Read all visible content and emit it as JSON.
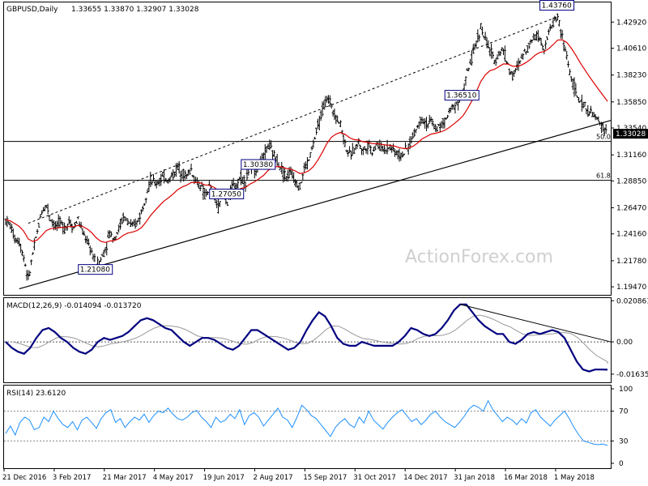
{
  "header": {
    "symbol": "GBPUSD,Daily",
    "ohlc": "1.33655 1.33870 1.32907 1.33028"
  },
  "watermark": "ActionForex.com",
  "chart_data": [
    {
      "type": "candlestick",
      "title": "GBPUSD,Daily",
      "y_ticks": [
        "1.42920",
        "1.40610",
        "1.38230",
        "1.35850",
        "1.33540",
        "1.31160",
        "1.28850",
        "1.26470",
        "1.24160",
        "1.21780",
        "1.19470"
      ],
      "ylim": [
        1.1876,
        1.4466
      ],
      "last_price": "1.33028",
      "last_value": 1.33028,
      "x_ticks": [
        "21 Dec 2016",
        "3 Feb 2017",
        "21 Mar 2017",
        "4 May 2017",
        "19 Jun 2017",
        "2 Aug 2017",
        "15 Sep 2017",
        "31 Oct 2017",
        "14 Dec 2017",
        "31 Jan 2018",
        "16 Mar 2018",
        "1 May 2018"
      ],
      "price_labels": [
        {
          "text": "1.27050",
          "value": 1.2705
        },
        {
          "text": "1.21080",
          "value": 1.2108
        },
        {
          "text": "1.36510",
          "value": 1.3651
        },
        {
          "text": "1.30380",
          "value": 1.3038
        },
        {
          "text": "1.43760",
          "value": 1.4376
        }
      ],
      "fib_levels": [
        {
          "label": "50.0",
          "value": 1.3235
        },
        {
          "label": "61.8",
          "value": 1.289
        }
      ],
      "ema_color": "#dd0000",
      "price_path": [
        1.254,
        1.249,
        1.238,
        1.235,
        1.221,
        1.201,
        1.224,
        1.243,
        1.262,
        1.267,
        1.255,
        1.248,
        1.252,
        1.246,
        1.253,
        1.247,
        1.255,
        1.243,
        1.235,
        1.226,
        1.214,
        1.219,
        1.228,
        1.242,
        1.238,
        1.246,
        1.256,
        1.253,
        1.247,
        1.252,
        1.261,
        1.277,
        1.289,
        1.286,
        1.289,
        1.292,
        1.289,
        1.294,
        1.301,
        1.296,
        1.293,
        1.299,
        1.288,
        1.285,
        1.275,
        1.283,
        1.274,
        1.265,
        1.277,
        1.269,
        1.283,
        1.286,
        1.292,
        1.288,
        1.301,
        1.298,
        1.305,
        1.309,
        1.321,
        1.313,
        1.307,
        1.299,
        1.292,
        1.296,
        1.289,
        1.283,
        1.299,
        1.307,
        1.321,
        1.337,
        1.351,
        1.362,
        1.356,
        1.345,
        1.339,
        1.321,
        1.311,
        1.316,
        1.323,
        1.315,
        1.321,
        1.315,
        1.321,
        1.318,
        1.317,
        1.319,
        1.315,
        1.311,
        1.313,
        1.319,
        1.328,
        1.337,
        1.345,
        1.339,
        1.341,
        1.335,
        1.337,
        1.341,
        1.349,
        1.355,
        1.359,
        1.366,
        1.384,
        1.397,
        1.411,
        1.425,
        1.413,
        1.405,
        1.394,
        1.402,
        1.405,
        1.391,
        1.381,
        1.388,
        1.398,
        1.405,
        1.411,
        1.419,
        1.415,
        1.407,
        1.419,
        1.429,
        1.434,
        1.415,
        1.399,
        1.379,
        1.367,
        1.357,
        1.355,
        1.349,
        1.346,
        1.341,
        1.336,
        1.331
      ]
    },
    {
      "type": "line",
      "title": "MACD(12,26,9) -0.014094 -0.013720",
      "y_ticks": [
        "0.020861",
        "0.00",
        "-0.016357"
      ],
      "ylim": [
        -0.0205,
        0.0222
      ],
      "main_color": "#000080",
      "signal_color": "#999999",
      "macd_path": [
        0.0,
        -0.003,
        -0.005,
        -0.006,
        -0.003,
        0.002,
        0.006,
        0.007,
        0.005,
        0.002,
        0.0,
        -0.003,
        -0.005,
        -0.006,
        -0.004,
        0.0,
        0.002,
        0.001,
        0.002,
        0.003,
        0.005,
        0.008,
        0.011,
        0.012,
        0.011,
        0.009,
        0.007,
        0.006,
        0.003,
        0.0,
        -0.002,
        0.0,
        0.002,
        0.002,
        0.001,
        -0.001,
        -0.003,
        -0.004,
        -0.002,
        0.002,
        0.006,
        0.006,
        0.004,
        0.002,
        0.0,
        -0.002,
        -0.004,
        -0.003,
        0.0,
        0.006,
        0.011,
        0.015,
        0.013,
        0.008,
        0.002,
        -0.001,
        -0.002,
        -0.002,
        0.0,
        -0.001,
        -0.002,
        -0.002,
        -0.002,
        -0.002,
        0.0,
        0.003,
        0.007,
        0.006,
        0.004,
        0.003,
        0.004,
        0.007,
        0.011,
        0.016,
        0.019,
        0.019,
        0.015,
        0.011,
        0.008,
        0.006,
        0.004,
        0.004,
        0.0,
        -0.001,
        0.001,
        0.004,
        0.005,
        0.004,
        0.005,
        0.006,
        0.005,
        0.002,
        -0.004,
        -0.01,
        -0.014,
        -0.015,
        -0.014,
        -0.014,
        -0.0141
      ]
    },
    {
      "type": "line",
      "title": "RSI(14) 23.6120",
      "y_ticks": [
        "100",
        "70",
        "30",
        "0"
      ],
      "ylim": [
        0,
        100
      ],
      "levels": [
        70,
        30
      ],
      "line_color": "#1e90ff",
      "rsi_path": [
        40,
        50,
        38,
        55,
        62,
        58,
        45,
        48,
        62,
        56,
        70,
        60,
        52,
        48,
        56,
        45,
        58,
        62,
        55,
        47,
        60,
        68,
        72,
        55,
        60,
        48,
        56,
        62,
        58,
        66,
        55,
        64,
        70,
        68,
        74,
        66,
        60,
        58,
        62,
        68,
        71,
        62,
        56,
        48,
        62,
        55,
        58,
        66,
        60,
        72,
        52,
        64,
        68,
        62,
        50,
        58,
        66,
        74,
        62,
        58,
        48,
        62,
        78,
        72,
        64,
        60,
        52,
        44,
        36,
        48,
        55,
        60,
        52,
        48,
        62,
        54,
        70,
        58,
        52,
        46,
        55,
        62,
        68,
        72,
        64,
        56,
        60,
        52,
        58,
        66,
        70,
        62,
        56,
        52,
        48,
        55,
        63,
        73,
        78,
        75,
        70,
        84,
        72,
        64,
        56,
        62,
        58,
        52,
        60,
        54,
        68,
        72,
        62,
        56,
        50,
        58,
        64,
        70,
        60,
        48,
        38,
        30,
        28,
        26,
        25,
        26,
        24
      ]
    }
  ]
}
